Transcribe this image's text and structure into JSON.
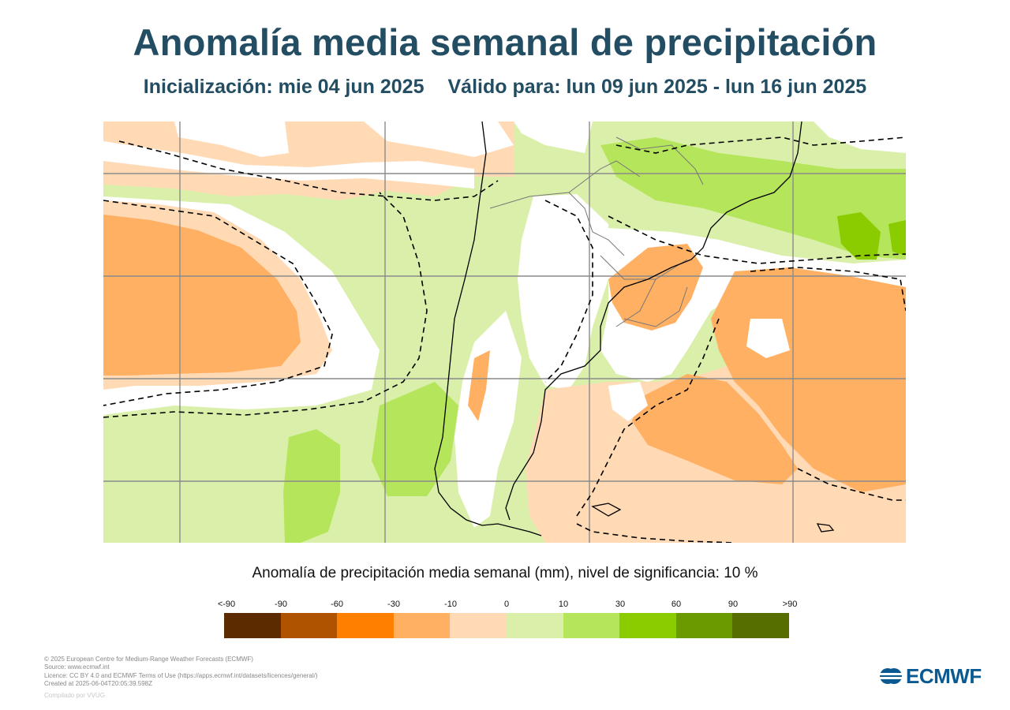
{
  "title": "Anomalía media semanal de precipitación",
  "subtitle": {
    "init": "Inicialización: mie 04 jun 2025",
    "valid": "Válido para: lun 09 jun 2025 - lun 16 jun 2025"
  },
  "legend": {
    "title": "Anomalía de precipitación media semanal (mm), nivel de significancia: 10 %",
    "ticks": [
      "<-90",
      "-90",
      "-60",
      "-30",
      "-10",
      "0",
      "10",
      "30",
      "60",
      "90",
      ">90"
    ],
    "colors": [
      "#5c2c00",
      "#b05300",
      "#ff8000",
      "#ffb063",
      "#ffdab5",
      "#daf0aa",
      "#b5e55a",
      "#8acc00",
      "#6b9a00",
      "#566e00"
    ]
  },
  "credits": {
    "line1": "© 2025 European Centre for Medium-Range Weather Forecasts (ECMWF)",
    "line2": "Source: www.ecmwf.int",
    "line3": "Licence: CC BY 4.0 and ECMWF Terms of Use (https://apps.ecmwf.int/datasets/licences/general/)",
    "line4": "Created at 2025-06-04T20:05:39.598Z",
    "compiled": "Compilado por VVUG"
  },
  "logo": {
    "text": "ECMWF",
    "icon": "ecmwf-logo-icon"
  },
  "map": {
    "region": "South America south",
    "land_outline_color": "#000000",
    "grid_color": "#8a8a8a"
  }
}
